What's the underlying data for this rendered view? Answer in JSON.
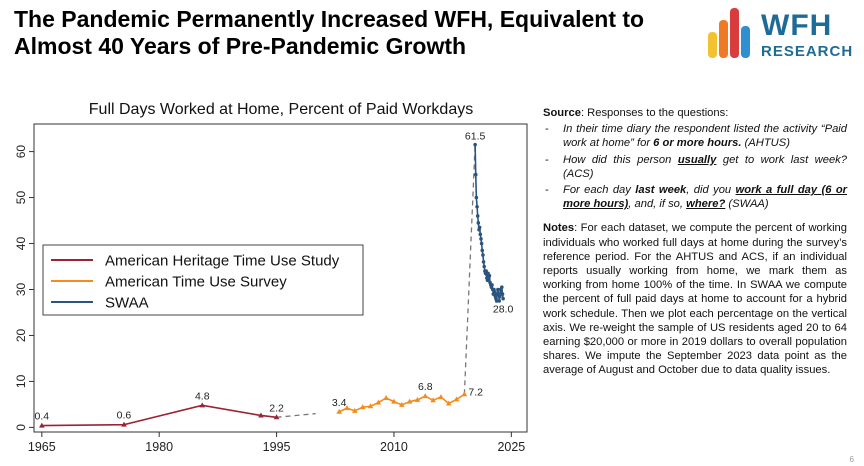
{
  "slide": {
    "headline": "The Pandemic Permanently Increased WFH, Equivalent to Almost 40 Years of Pre-Pandemic Growth",
    "page_number": "6"
  },
  "logo": {
    "word1": "WFH",
    "word2": "RESEARCH",
    "bar_colors": [
      "#f2c231",
      "#ef7a25",
      "#d93c3c",
      "#2f8fd0"
    ]
  },
  "source": {
    "label": "Source",
    "intro": ": Responses to the questions:",
    "q1": {
      "text": "In their time diary the respondent listed the activity “Paid work at home” for ",
      "bold": "6 or more hours.",
      "tail": " (AHTUS)"
    },
    "q2": {
      "text": "How did this person ",
      "bold": "usually",
      "tail": " get to work last week? (ACS)"
    },
    "q3": {
      "text": "For each day ",
      "bold1": "last week",
      "mid": ", did you ",
      "bold2": "work a full day (6 or more hours)",
      "mid2": ", and, if so, ",
      "bold3": "where?",
      "tail": " (SWAA)"
    }
  },
  "notes": {
    "label": "Notes",
    "text": ": For each dataset, we compute the percent of working individuals who worked full days at home during the survey’s reference period. For the AHTUS and ACS, if an individual reports usually working from home, we mark them as working from home 100% of the time. In SWAA we compute the percent of full paid days at home to account for a hybrid work schedule. Then we plot each percentage on the vertical axis. We re-weight the sample of US residents aged 20 to 64 earning $20,000 or more in 2019 dollars to overall population shares. We impute the September 2023 data point as the average of August and October due to data quality issues."
  },
  "chart_data": {
    "type": "line",
    "title": "Full Days Worked at Home, Percent of Paid Workdays",
    "xlabel": "",
    "ylabel": "",
    "xlim": [
      1964,
      2027
    ],
    "ylim": [
      -1,
      66
    ],
    "xticks": [
      1965,
      1980,
      1995,
      2010,
      2025
    ],
    "yticks": [
      0,
      10,
      20,
      30,
      40,
      50,
      60
    ],
    "legend_position": "left",
    "series": [
      {
        "name": "American Heritage Time Use Study",
        "color": "#9b2335",
        "marker": "triangle",
        "x": [
          1965,
          1975.5,
          1985.5,
          1993,
          1995
        ],
        "y": [
          0.4,
          0.6,
          4.8,
          2.6,
          2.2
        ]
      },
      {
        "name": "American Time Use Survey",
        "color": "#f28c1e",
        "marker": "triangle",
        "x": [
          2003,
          2004,
          2005,
          2006,
          2007,
          2008,
          2009,
          2010,
          2011,
          2012,
          2013,
          2014,
          2015,
          2016,
          2017,
          2018,
          2019
        ],
        "y": [
          3.4,
          4.2,
          3.6,
          4.4,
          4.6,
          5.4,
          6.4,
          5.6,
          4.9,
          5.6,
          6.0,
          6.8,
          5.9,
          6.6,
          5.2,
          6.1,
          7.2
        ]
      },
      {
        "name": "SWAA",
        "color": "#2b557f",
        "marker": "circle",
        "x": [
          2020.37,
          2020.45,
          2020.53,
          2020.62,
          2020.7,
          2020.78,
          2020.87,
          2020.95,
          2021.03,
          2021.12,
          2021.2,
          2021.28,
          2021.37,
          2021.45,
          2021.53,
          2021.62,
          2021.7,
          2021.78,
          2021.87,
          2021.95,
          2022.03,
          2022.12,
          2022.2,
          2022.28,
          2022.37,
          2022.45,
          2022.53,
          2022.62,
          2022.7,
          2022.78,
          2022.87,
          2022.95,
          2023.03,
          2023.12,
          2023.2,
          2023.28,
          2023.37,
          2023.45,
          2023.53,
          2023.62,
          2023.7,
          2023.78,
          2023.87,
          2023.95
        ],
        "y": [
          61.5,
          55,
          50,
          48,
          46,
          44.5,
          43,
          43.5,
          42,
          41,
          40,
          38.5,
          37.5,
          36,
          35,
          34,
          33.5,
          34,
          32.5,
          32,
          33.5,
          32.5,
          33,
          31.5,
          31,
          30.5,
          31,
          30,
          29,
          30,
          29.5,
          28.5,
          28,
          27.5,
          29,
          30,
          29,
          27.5,
          28.5,
          30,
          29.5,
          30.5,
          29,
          28
        ]
      }
    ],
    "gap_lines": [
      {
        "x": [
          1995,
          2000
        ],
        "y": [
          2.2,
          3.0
        ]
      },
      {
        "x": [
          2019,
          2020.37
        ],
        "y": [
          7.2,
          61.5
        ]
      }
    ],
    "data_labels": [
      {
        "x": 1965,
        "y": 0.4,
        "text": "0.4",
        "series": "American Heritage Time Use Study"
      },
      {
        "x": 1975.5,
        "y": 0.6,
        "text": "0.6",
        "series": "American Heritage Time Use Study"
      },
      {
        "x": 1985.5,
        "y": 4.8,
        "text": "4.8",
        "series": "American Heritage Time Use Study"
      },
      {
        "x": 1995,
        "y": 2.2,
        "text": "2.2",
        "series": "American Heritage Time Use Study"
      },
      {
        "x": 2003,
        "y": 3.4,
        "text": "3.4",
        "series": "American Time Use Survey"
      },
      {
        "x": 2014,
        "y": 6.8,
        "text": "6.8",
        "series": "American Time Use Survey"
      },
      {
        "x": 2019,
        "y": 7.2,
        "text": "7.2",
        "series": "American Time Use Survey"
      },
      {
        "x": 2020.37,
        "y": 61.5,
        "text": "61.5",
        "series": "SWAA"
      },
      {
        "x": 2023.95,
        "y": 28.0,
        "text": "28.0",
        "series": "SWAA"
      }
    ]
  }
}
